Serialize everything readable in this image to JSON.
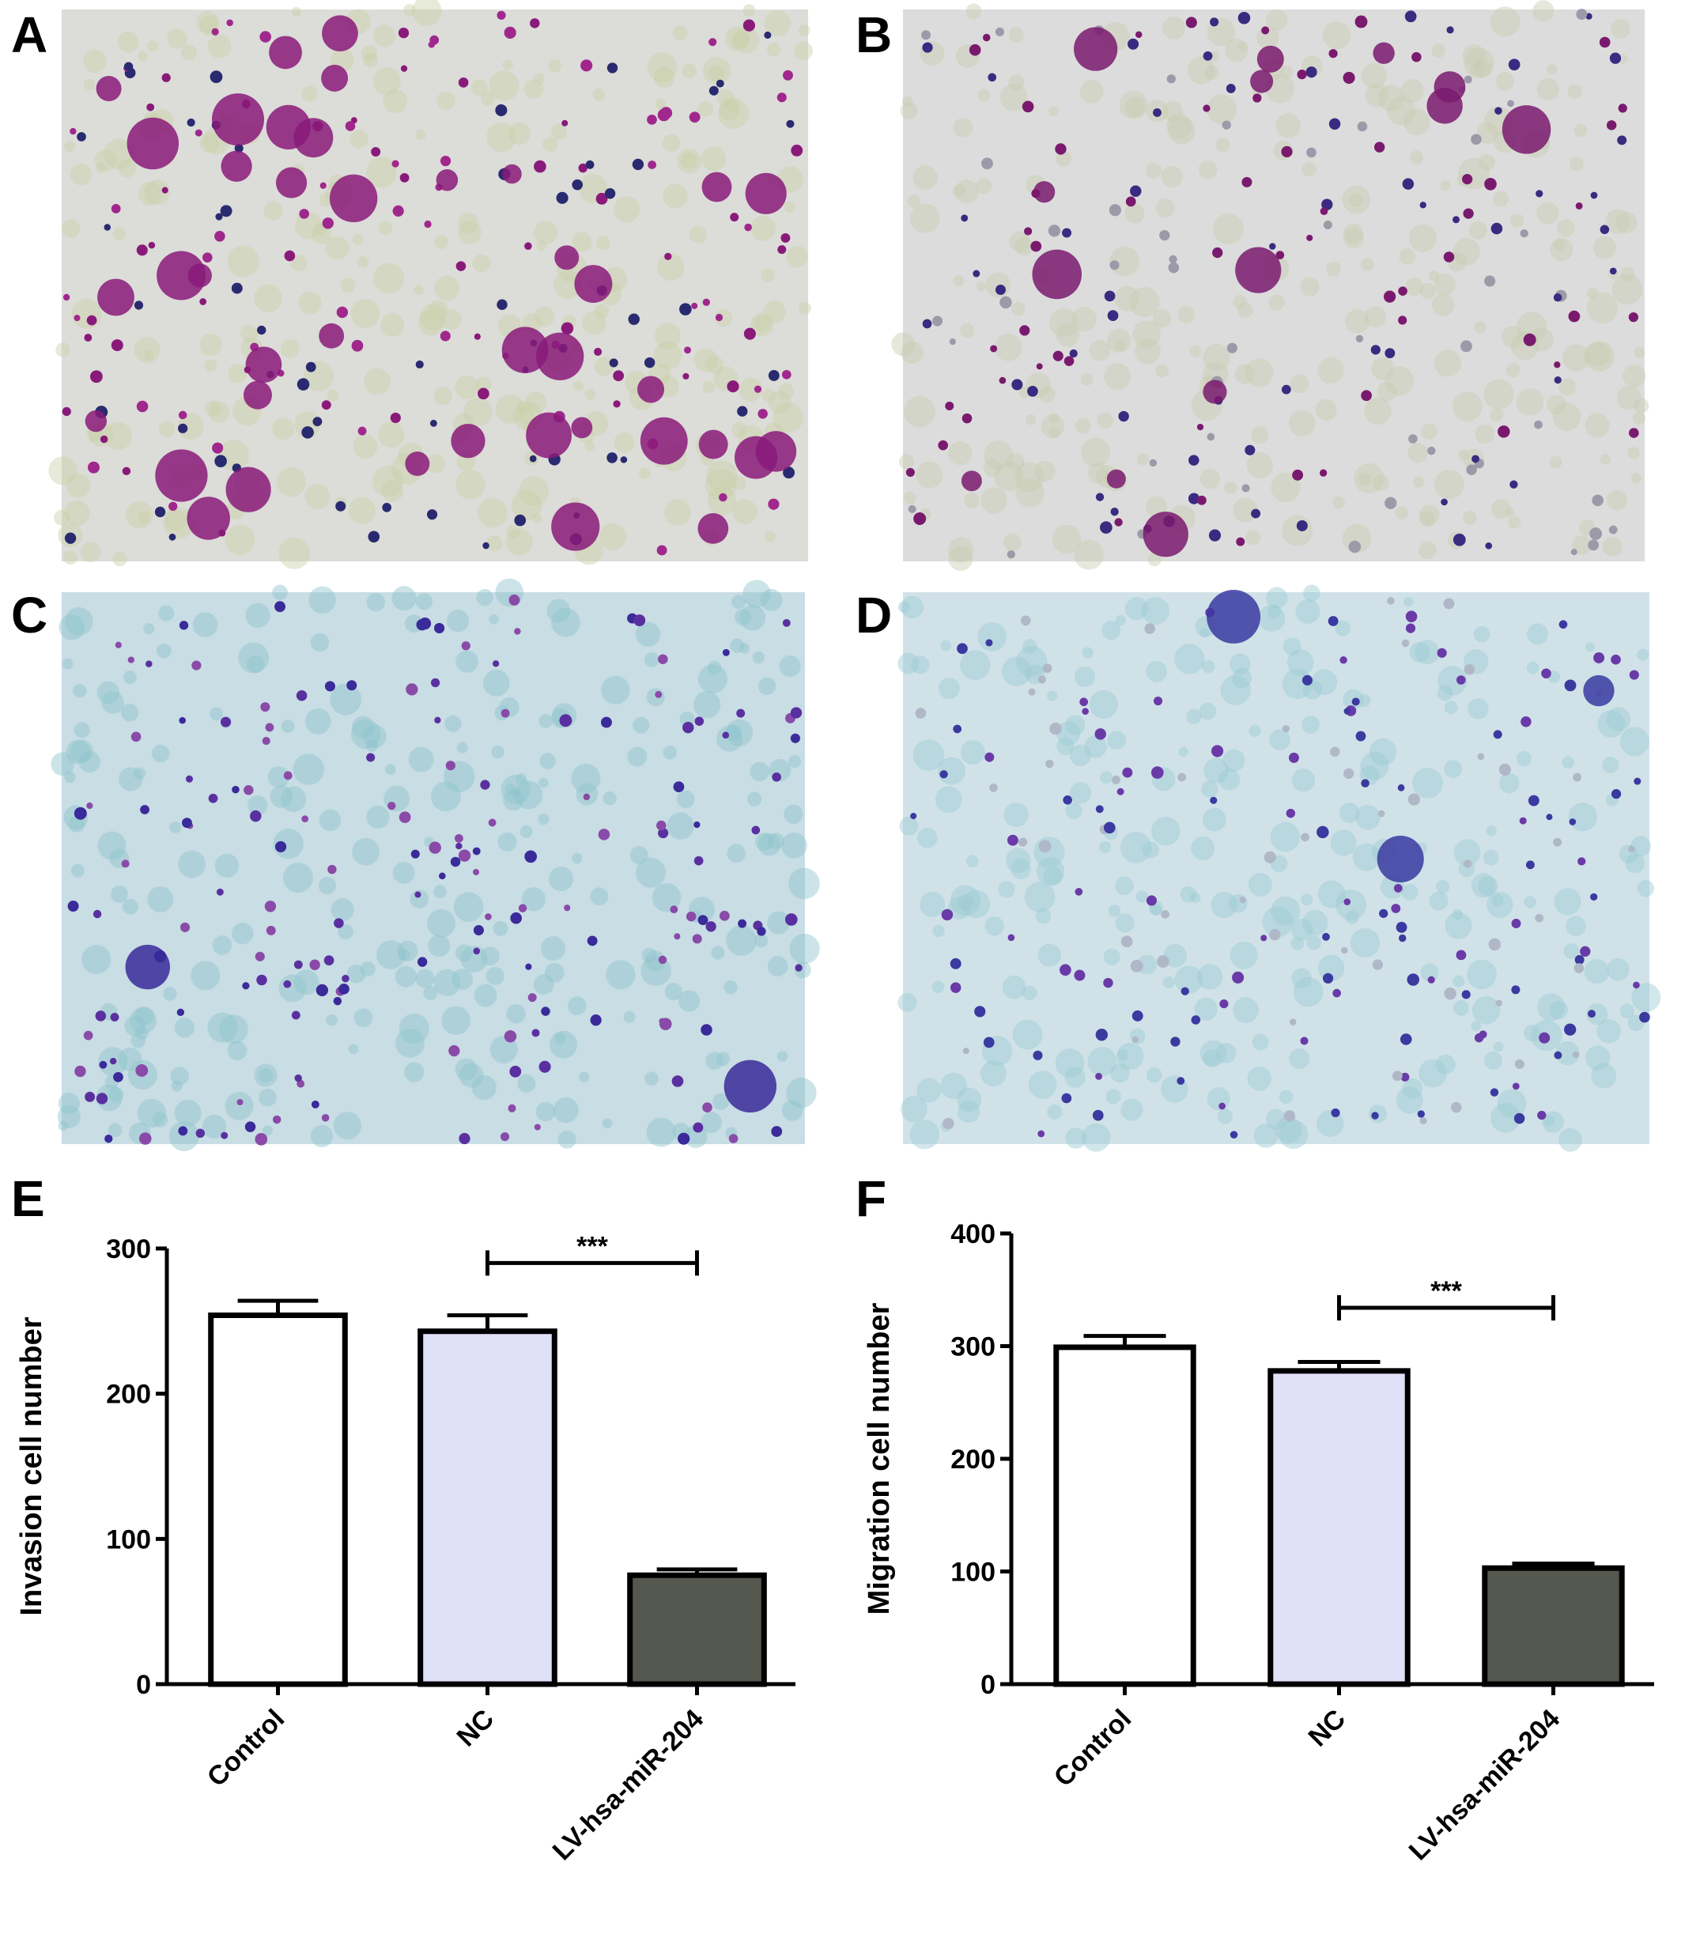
{
  "panels": [
    "A",
    "B",
    "C",
    "D"
  ],
  "chart_data": [
    {
      "type": "bar",
      "panel": "E",
      "ylabel": "Invasion cell number",
      "categories": [
        "Control",
        "NC",
        "LV-hsa-miR-204"
      ],
      "values": [
        254,
        243,
        75
      ],
      "errors": [
        10,
        11,
        4
      ],
      "colors": [
        "#ffffff",
        "#e0e0f8",
        "#55584f"
      ],
      "ylim": [
        0,
        300
      ],
      "yticks": [
        0,
        100,
        200,
        300
      ],
      "annotations": [
        {
          "text": "***",
          "from": 1,
          "to": 2
        }
      ]
    },
    {
      "type": "bar",
      "panel": "F",
      "ylabel": "Migration cell number",
      "categories": [
        "Control",
        "NC",
        "LV-hsa-miR-204"
      ],
      "values": [
        299,
        278,
        103
      ],
      "errors": [
        10,
        8,
        4
      ],
      "colors": [
        "#ffffff",
        "#e0e0f8",
        "#55584f"
      ],
      "ylim": [
        0,
        400
      ],
      "yticks": [
        0,
        100,
        200,
        300,
        400
      ],
      "annotations": [
        {
          "text": "***",
          "from": 1,
          "to": 2
        }
      ]
    }
  ]
}
